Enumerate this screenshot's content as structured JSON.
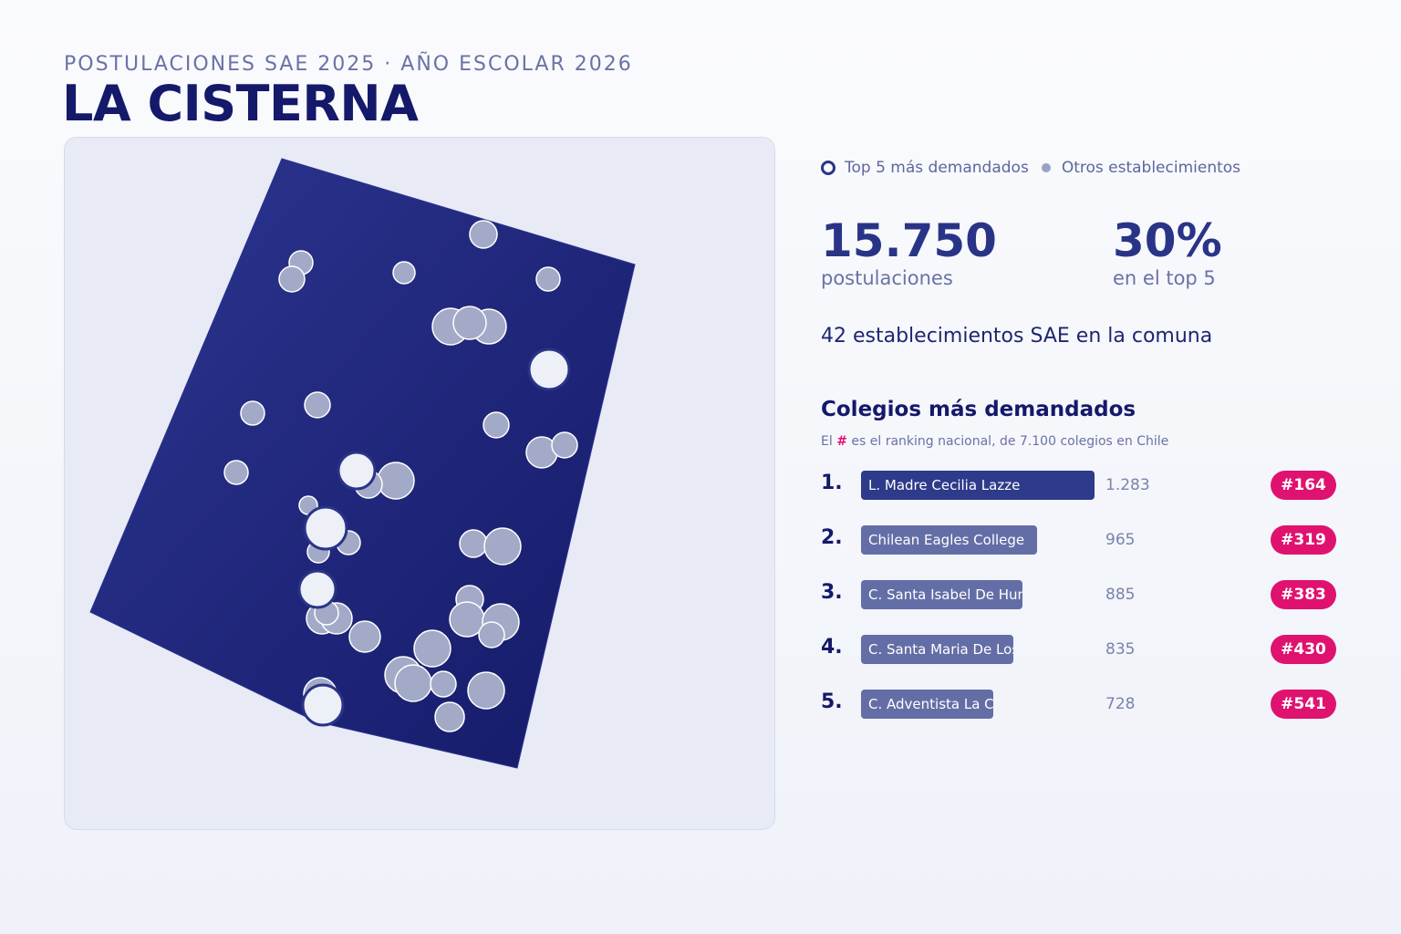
{
  "header": {
    "subtitle": "POSTULACIONES SAE 2025 · AÑO ESCOLAR 2026",
    "title": "LA CISTERNA"
  },
  "legend": {
    "top5_label": "Top 5 más demandados",
    "others_label": "Otros establecimientos"
  },
  "stats": {
    "applications_value": "15.750",
    "applications_label": "postulaciones",
    "top5_share_value": "30%",
    "top5_share_label": "en el top 5"
  },
  "schools_count_text": "42 establecimientos SAE en la comuna",
  "ranking": {
    "title": "Colegios más demandados",
    "note_prefix": "El",
    "note_hash": "#",
    "note_suffix": "es el ranking nacional, de 7.100 colegios en Chile",
    "max_value": 1283,
    "items": [
      {
        "position": "1.",
        "name": "L. Madre Cecilia Lazze",
        "applications": 1283,
        "applications_text": "1.283",
        "national_rank": "#164"
      },
      {
        "position": "2.",
        "name": "Chilean Eagles College",
        "applications": 965,
        "applications_text": "965",
        "national_rank": "#319"
      },
      {
        "position": "3.",
        "name": "C. Santa Isabel De Hun",
        "applications": 885,
        "applications_text": "885",
        "national_rank": "#383"
      },
      {
        "position": "4.",
        "name": "C. Santa Maria De Los",
        "applications": 835,
        "applications_text": "835",
        "national_rank": "#430"
      },
      {
        "position": "5.",
        "name": "C. Adventista La Ciste",
        "applications": 728,
        "applications_text": "728",
        "national_rank": "#541"
      }
    ]
  },
  "colors": {
    "commune_fill": "#1c2172",
    "top_marker_fill": "#eef0f8",
    "other_marker_fill": "#a3aac7",
    "bar_top": "#2e3a8a",
    "bar_other": "#646ea6",
    "badge": "#e0126f"
  }
}
